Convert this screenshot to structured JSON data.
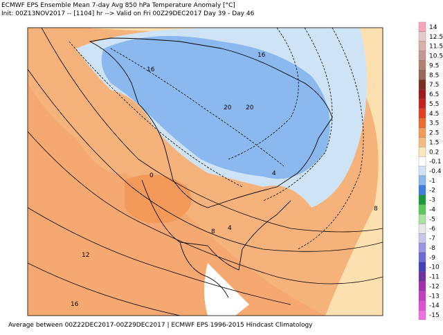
{
  "header": {
    "title": "ECMWF EPS Ensemble Mean 7-day Avg 850 hPa Temperature Anomaly [°C]",
    "subtitle": "Init: 00Z13NOV2017 -- [1104] hr --> Valid on Fri 00Z29DEC2017  Day 39 - Day 46"
  },
  "footer": "Average between 00Z22DEC2017-00Z29DEC2017 | ECMWF EPS 1996-2015 Hindcast Climatology",
  "colorbar": [
    {
      "label": "14",
      "color": "#f4a6b8"
    },
    {
      "label": "12.5",
      "color": "#e8c8c8"
    },
    {
      "label": "11.5",
      "color": "#d8b0a8"
    },
    {
      "label": "10.5",
      "color": "#c89890"
    },
    {
      "label": "9.5",
      "color": "#b08070"
    },
    {
      "label": "8.5",
      "color": "#986858"
    },
    {
      "label": "7.5",
      "color": "#7a3020"
    },
    {
      "label": "6.5",
      "color": "#a01818"
    },
    {
      "label": "5.5",
      "color": "#c82020"
    },
    {
      "label": "4.5",
      "color": "#e83c20"
    },
    {
      "label": "3.5",
      "color": "#f06a30"
    },
    {
      "label": "2.5",
      "color": "#f39a5a"
    },
    {
      "label": "1.5",
      "color": "#f5bb80"
    },
    {
      "label": "0.2",
      "color": "#fde6b8"
    },
    {
      "label": "-0.1",
      "color": "#ffffff"
    },
    {
      "label": "-0.4",
      "color": "#cfe3f7"
    },
    {
      "label": "-1",
      "color": "#8ab8ef"
    },
    {
      "label": "-2",
      "color": "#3d7ee0"
    },
    {
      "label": "-3",
      "color": "#1a9a3a"
    },
    {
      "label": "-4",
      "color": "#5cc85c"
    },
    {
      "label": "-5",
      "color": "#a8e4a0"
    },
    {
      "label": "-6",
      "color": "#e8e8e8"
    },
    {
      "label": "-7",
      "color": "#c8c8e8"
    },
    {
      "label": "-8",
      "color": "#9898e0"
    },
    {
      "label": "-9",
      "color": "#6a6ad8"
    },
    {
      "label": "-10",
      "color": "#4040c0"
    },
    {
      "label": "-11",
      "color": "#7030a0"
    },
    {
      "label": "-12",
      "color": "#a030b0"
    },
    {
      "label": "-13",
      "color": "#c040c0"
    },
    {
      "label": "-14",
      "color": "#e050d0"
    },
    {
      "label": "-15",
      "color": "#f070e0"
    }
  ],
  "contour_labels": [
    "16",
    "16",
    "20",
    "20",
    "8",
    "4",
    "4",
    "8",
    "12",
    "16",
    "0"
  ]
}
